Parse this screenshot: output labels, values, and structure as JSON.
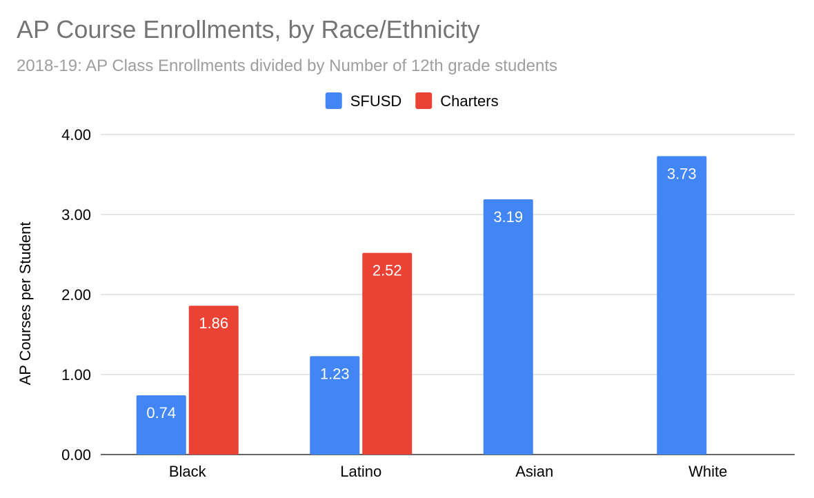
{
  "chart_data": {
    "type": "bar",
    "title": "AP Course Enrollments, by Race/Ethnicity",
    "subtitle": "2018-19: AP Class Enrollments divided by Number of 12th grade students",
    "ylabel": "AP Courses per Student",
    "xlabel": "",
    "categories": [
      "Black",
      "Latino",
      "Asian",
      "White"
    ],
    "series": [
      {
        "name": "SFUSD",
        "color": "#4285f4",
        "values": [
          0.74,
          1.23,
          3.19,
          3.73
        ]
      },
      {
        "name": "Charters",
        "color": "#ea4335",
        "values": [
          1.86,
          2.52,
          null,
          null
        ]
      }
    ],
    "ylim": [
      0,
      4
    ],
    "yticks": [
      "0.00",
      "1.00",
      "2.00",
      "3.00",
      "4.00"
    ],
    "grid": true,
    "legend_position": "top-center"
  }
}
